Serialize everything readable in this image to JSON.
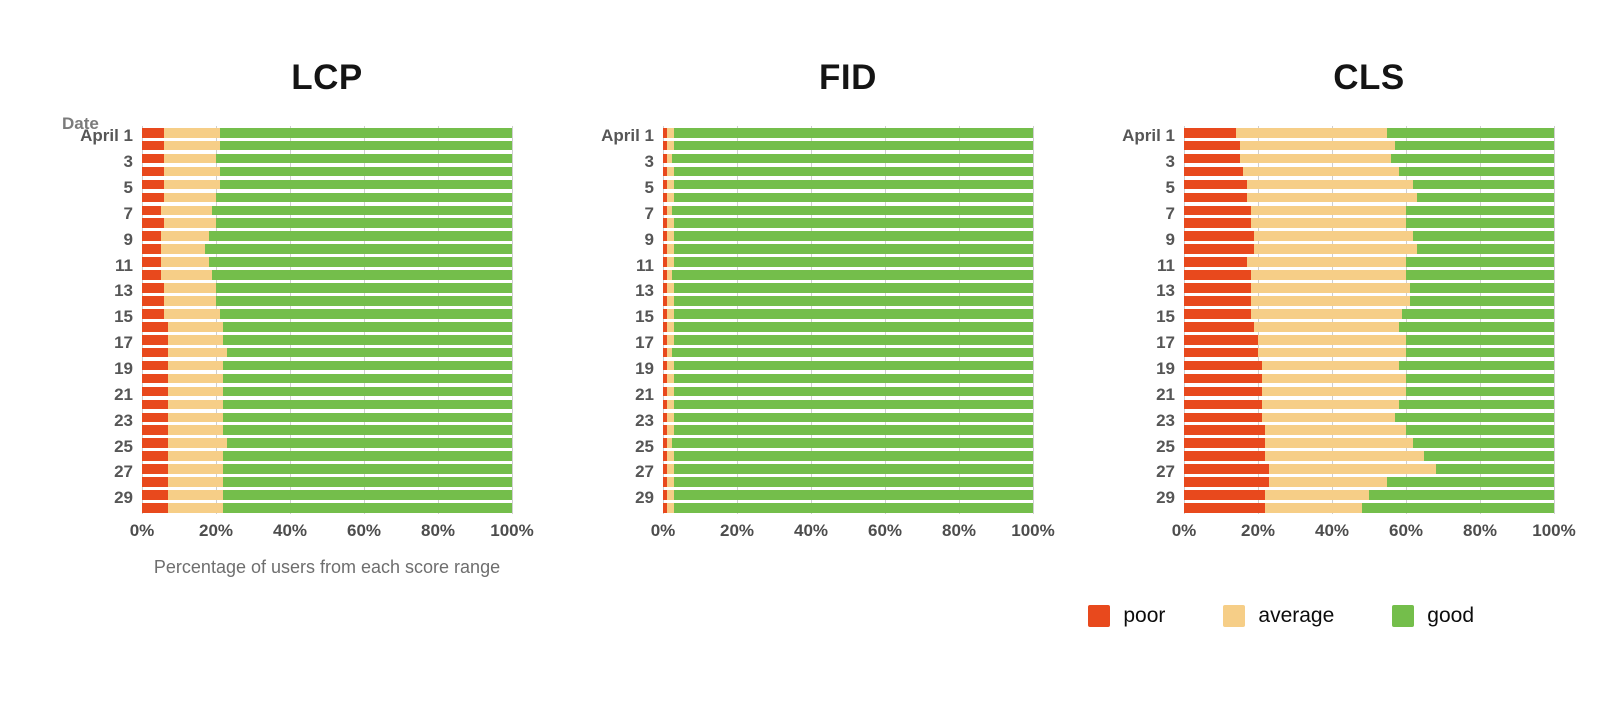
{
  "labels": {
    "date_header": "Date",
    "x_caption": "Percentage of users from each score range"
  },
  "x_axis": {
    "ticks": [
      "0%",
      "20%",
      "40%",
      "60%",
      "80%",
      "100%"
    ],
    "range": [
      0,
      100
    ]
  },
  "row_labels": [
    "April 1",
    "",
    "3",
    "",
    "5",
    "",
    "7",
    "",
    "9",
    "",
    "11",
    "",
    "13",
    "",
    "15",
    "",
    "17",
    "",
    "19",
    "",
    "21",
    "",
    "23",
    "",
    "25",
    "",
    "27",
    "",
    "29",
    ""
  ],
  "colors": {
    "poor": "#e8491d",
    "average": "#f6ce87",
    "good": "#74be4b",
    "gridline": "#cfcfcf"
  },
  "legend": {
    "items": [
      "poor",
      "average",
      "good"
    ],
    "position": "bottom-right"
  },
  "chart_data": [
    {
      "type": "bar",
      "orientation": "horizontal-stacked",
      "title": "LCP",
      "ylabel": "Date",
      "xlabel": "Percentage of users from each score range",
      "xlim": [
        0,
        100
      ],
      "grid": true,
      "categories": [
        "April 1",
        "",
        "3",
        "",
        "5",
        "",
        "7",
        "",
        "9",
        "",
        "11",
        "",
        "13",
        "",
        "15",
        "",
        "17",
        "",
        "19",
        "",
        "21",
        "",
        "23",
        "",
        "25",
        "",
        "27",
        "",
        "29",
        ""
      ],
      "series": [
        {
          "name": "poor",
          "values": [
            6,
            6,
            6,
            6,
            6,
            6,
            5,
            6,
            5,
            5,
            5,
            5,
            6,
            6,
            6,
            7,
            7,
            7,
            7,
            7,
            7,
            7,
            7,
            7,
            7,
            7,
            7,
            7,
            7,
            7
          ]
        },
        {
          "name": "average",
          "values": [
            15,
            15,
            14,
            15,
            15,
            14,
            14,
            14,
            13,
            12,
            13,
            14,
            14,
            14,
            15,
            15,
            15,
            16,
            15,
            15,
            15,
            15,
            15,
            15,
            16,
            15,
            15,
            15,
            15,
            15
          ]
        },
        {
          "name": "good",
          "values": [
            79,
            79,
            80,
            79,
            79,
            80,
            81,
            80,
            82,
            83,
            82,
            81,
            80,
            80,
            79,
            78,
            78,
            77,
            78,
            78,
            78,
            78,
            78,
            78,
            77,
            78,
            78,
            78,
            78,
            78
          ]
        }
      ]
    },
    {
      "type": "bar",
      "orientation": "horizontal-stacked",
      "title": "FID",
      "xlim": [
        0,
        100
      ],
      "grid": true,
      "categories": [
        "April 1",
        "",
        "3",
        "",
        "5",
        "",
        "7",
        "",
        "9",
        "",
        "11",
        "",
        "13",
        "",
        "15",
        "",
        "17",
        "",
        "19",
        "",
        "21",
        "",
        "23",
        "",
        "25",
        "",
        "27",
        "",
        "29",
        ""
      ],
      "series": [
        {
          "name": "poor",
          "values": [
            1,
            1,
            1,
            1,
            1,
            1,
            1,
            1,
            1,
            1,
            1,
            1,
            1,
            1,
            1,
            1,
            1,
            1,
            1,
            1,
            1,
            1,
            1,
            1,
            1,
            1,
            1,
            1,
            1,
            1
          ]
        },
        {
          "name": "average",
          "values": [
            2,
            2,
            1.5,
            2,
            2,
            2,
            1.5,
            2,
            2,
            2,
            2,
            1.5,
            2,
            2,
            2,
            2,
            2,
            1.5,
            2,
            2,
            2,
            2,
            2,
            2,
            1.5,
            2,
            2,
            2,
            2,
            2
          ]
        },
        {
          "name": "good",
          "values": [
            97,
            97,
            97.5,
            97,
            97,
            97,
            97.5,
            97,
            97,
            97,
            97,
            97.5,
            97,
            97,
            97,
            97,
            97,
            97.5,
            97,
            97,
            97,
            97,
            97,
            97,
            97.5,
            97,
            97,
            97,
            97,
            97
          ]
        }
      ]
    },
    {
      "type": "bar",
      "orientation": "horizontal-stacked",
      "title": "CLS",
      "xlim": [
        0,
        100
      ],
      "grid": true,
      "categories": [
        "April 1",
        "",
        "3",
        "",
        "5",
        "",
        "7",
        "",
        "9",
        "",
        "11",
        "",
        "13",
        "",
        "15",
        "",
        "17",
        "",
        "19",
        "",
        "21",
        "",
        "23",
        "",
        "25",
        "",
        "27",
        "",
        "29",
        ""
      ],
      "series": [
        {
          "name": "poor",
          "values": [
            14,
            15,
            15,
            16,
            17,
            17,
            18,
            18,
            19,
            19,
            17,
            18,
            18,
            18,
            18,
            19,
            20,
            20,
            21,
            21,
            21,
            21,
            21,
            22,
            22,
            22,
            23,
            23,
            22,
            22
          ]
        },
        {
          "name": "average",
          "values": [
            41,
            42,
            41,
            42,
            45,
            46,
            42,
            42,
            43,
            44,
            43,
            42,
            43,
            43,
            41,
            39,
            40,
            40,
            37,
            39,
            39,
            37,
            36,
            38,
            40,
            43,
            45,
            32,
            28,
            26
          ]
        },
        {
          "name": "good",
          "values": [
            45,
            43,
            44,
            42,
            38,
            37,
            40,
            40,
            38,
            37,
            40,
            40,
            39,
            39,
            41,
            42,
            40,
            40,
            42,
            40,
            40,
            42,
            43,
            40,
            38,
            35,
            32,
            45,
            50,
            52
          ]
        }
      ]
    }
  ]
}
